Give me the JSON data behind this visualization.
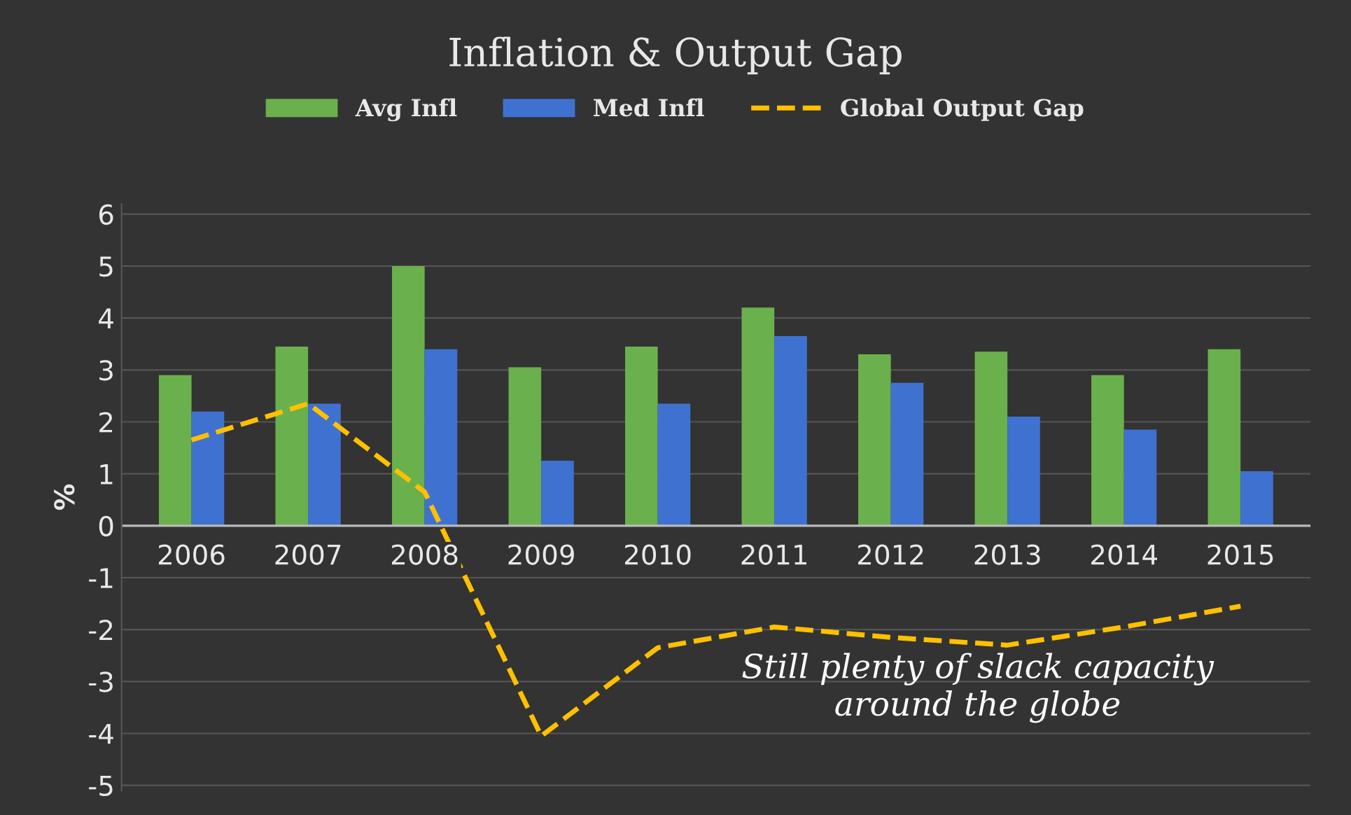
{
  "chart_data": {
    "type": "bar",
    "title": "Inflation & Output Gap",
    "ylabel": "%",
    "categories": [
      "2006",
      "2007",
      "2008",
      "2009",
      "2010",
      "2011",
      "2012",
      "2013",
      "2014",
      "2015"
    ],
    "series": [
      {
        "name": "Avg Infl",
        "color": "#6ab04c",
        "values": [
          2.9,
          3.45,
          5.0,
          3.05,
          3.45,
          4.2,
          3.3,
          3.35,
          2.9,
          3.4
        ]
      },
      {
        "name": "Med Infl",
        "color": "#3f72d0",
        "values": [
          2.2,
          2.35,
          3.4,
          1.25,
          2.35,
          3.65,
          2.75,
          2.1,
          1.85,
          1.05
        ]
      },
      {
        "name": "Global Output Gap",
        "type": "line",
        "color": "#ffc000",
        "line_style": "dashed",
        "values": [
          1.65,
          2.35,
          0.65,
          -4.05,
          -2.35,
          -1.95,
          -2.15,
          -2.3,
          -1.95,
          -1.55
        ]
      }
    ],
    "ylim": [
      -5.1,
      6.2
    ],
    "yticks": [
      -5,
      -4,
      -3,
      -2,
      -1,
      0,
      1,
      2,
      3,
      4,
      5,
      6
    ],
    "grid": "y",
    "legend": "top",
    "annotations": [
      "Still plenty of slack capacity\naround the globe"
    ]
  }
}
